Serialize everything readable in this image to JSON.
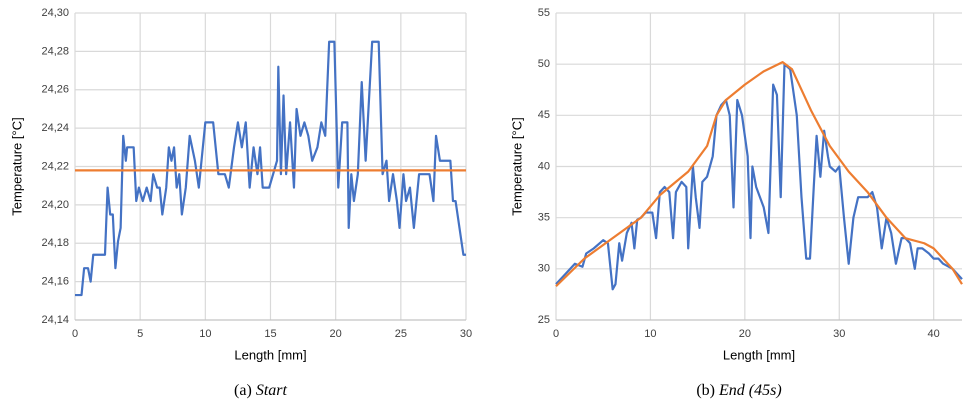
{
  "chart_data": [
    {
      "type": "line",
      "x_label": "Length [mm]",
      "y_label": "Temperature [°C]",
      "caption_label": "(a)",
      "caption_title": "Start",
      "xlim": [
        0,
        30
      ],
      "xticks": [
        0,
        5,
        10,
        15,
        20,
        25,
        30
      ],
      "ylim": [
        24.14,
        24.3
      ],
      "yticks": [
        {
          "value": 24.14,
          "label": "24,14"
        },
        {
          "value": 24.16,
          "label": "24,16"
        },
        {
          "value": 24.18,
          "label": "24,18"
        },
        {
          "value": 24.2,
          "label": "24,20"
        },
        {
          "value": 24.22,
          "label": "24,22"
        },
        {
          "value": 24.24,
          "label": "24,24"
        },
        {
          "value": 24.26,
          "label": "24,26"
        },
        {
          "value": 24.28,
          "label": "24,28"
        },
        {
          "value": 24.3,
          "label": "24,30"
        }
      ],
      "grid": true,
      "series": [
        {
          "color": "#4472c4",
          "x": [
            0,
            0.5,
            0.7,
            1.0,
            1.2,
            1.4,
            2.3,
            2.5,
            2.7,
            2.9,
            3.1,
            3.3,
            3.5,
            3.7,
            3.9,
            4.0,
            4.5,
            4.7,
            4.9,
            5.2,
            5.5,
            5.8,
            6.0,
            6.3,
            6.5,
            6.7,
            7.0,
            7.2,
            7.4,
            7.6,
            7.8,
            8.0,
            8.2,
            8.5,
            8.8,
            9.2,
            9.5,
            10.0,
            10.6,
            11.0,
            11.5,
            11.8,
            12.2,
            12.5,
            12.8,
            13.1,
            13.4,
            13.7,
            14.0,
            14.2,
            14.4,
            14.9,
            15.2,
            15.5,
            15.6,
            15.8,
            16.0,
            16.2,
            16.5,
            16.8,
            17.0,
            17.3,
            17.6,
            17.9,
            18.2,
            18.6,
            18.9,
            19.2,
            19.5,
            19.9,
            20.2,
            20.5,
            20.9,
            21.0,
            21.2,
            21.4,
            21.7,
            22.0,
            22.3,
            22.8,
            23.3,
            23.6,
            23.9,
            24.1,
            24.4,
            24.7,
            24.9,
            25.2,
            25.4,
            25.7,
            26.0,
            26.4,
            27.2,
            27.5,
            27.7,
            28.0,
            28.8,
            29.0,
            29.2,
            29.5,
            29.8,
            30.0
          ],
          "values": [
            24.153,
            24.153,
            24.167,
            24.167,
            24.16,
            24.174,
            24.174,
            24.209,
            24.195,
            24.195,
            24.167,
            24.181,
            24.188,
            24.236,
            24.223,
            24.23,
            24.23,
            24.202,
            24.209,
            24.202,
            24.209,
            24.202,
            24.216,
            24.209,
            24.209,
            24.195,
            24.209,
            24.23,
            24.223,
            24.23,
            24.209,
            24.216,
            24.195,
            24.209,
            24.236,
            24.223,
            24.209,
            24.243,
            24.243,
            24.216,
            24.216,
            24.209,
            24.23,
            24.243,
            24.23,
            24.243,
            24.209,
            24.23,
            24.216,
            24.23,
            24.209,
            24.209,
            24.216,
            24.223,
            24.272,
            24.216,
            24.257,
            24.216,
            24.243,
            24.209,
            24.25,
            24.236,
            24.243,
            24.236,
            24.223,
            24.23,
            24.243,
            24.236,
            24.285,
            24.285,
            24.209,
            24.243,
            24.243,
            24.188,
            24.216,
            24.202,
            24.216,
            24.264,
            24.223,
            24.285,
            24.285,
            24.216,
            24.223,
            24.202,
            24.216,
            24.202,
            24.188,
            24.216,
            24.202,
            24.209,
            24.188,
            24.216,
            24.216,
            24.202,
            24.236,
            24.223,
            24.223,
            24.202,
            24.202,
            24.188,
            24.174,
            24.174
          ]
        },
        {
          "color": "#ed7d31",
          "x": [
            0,
            30
          ],
          "values": [
            24.218,
            24.218
          ]
        }
      ]
    },
    {
      "type": "line",
      "x_label": "Length [mm]",
      "y_label": "Temperature [°C]",
      "caption_label": "(b)",
      "caption_title": "End (45s)",
      "xlim": [
        0,
        43
      ],
      "xticks": [
        0,
        10,
        20,
        30,
        40
      ],
      "ylim": [
        25,
        55
      ],
      "yticks": [
        25,
        30,
        35,
        40,
        45,
        50,
        55
      ],
      "grid": true,
      "series": [
        {
          "color": "#4472c4",
          "x": [
            0,
            1,
            2,
            2.8,
            3.2,
            4,
            5,
            5.5,
            6,
            6.3,
            6.7,
            7,
            7.5,
            8,
            8.3,
            8.6,
            9,
            9.5,
            10.2,
            10.6,
            11,
            11.5,
            12,
            12.4,
            12.7,
            13.3,
            13.8,
            14,
            14.5,
            14.8,
            15.2,
            15.5,
            16,
            16.6,
            17,
            17.5,
            18,
            18.4,
            18.8,
            19.2,
            19.7,
            20.3,
            20.6,
            20.8,
            21.2,
            22,
            22.5,
            23,
            23.4,
            23.8,
            24.2,
            24.8,
            25.5,
            26,
            26.5,
            26.9,
            27.3,
            27.6,
            28,
            28.4,
            28.8,
            29,
            29.6,
            30,
            30.5,
            31,
            31.5,
            32,
            33,
            33.5,
            34,
            34.5,
            35,
            35.5,
            36,
            36.6,
            37,
            37.5,
            38,
            38.3,
            38.8,
            39.5,
            40,
            40.5,
            41,
            42,
            43
          ],
          "values": [
            28.5,
            29.5,
            30.5,
            30.2,
            31.5,
            32,
            32.8,
            32.5,
            28,
            28.5,
            32.5,
            30.8,
            33.5,
            34.5,
            32,
            34.8,
            35,
            35.5,
            35.5,
            33,
            37.5,
            38,
            37.5,
            33,
            37.5,
            38.5,
            38,
            32,
            40,
            37,
            34,
            38.5,
            39,
            41,
            45,
            46,
            46.5,
            45,
            36,
            46.5,
            45,
            41,
            33,
            40,
            38,
            36,
            33.5,
            48,
            47,
            37,
            50,
            49.5,
            45,
            37,
            31,
            31,
            38,
            43,
            39,
            43.5,
            41,
            40,
            39.5,
            40,
            35,
            30.5,
            35,
            37,
            37,
            37.5,
            36,
            32,
            35,
            33.5,
            30.5,
            33,
            33,
            32.5,
            30,
            32,
            32,
            31.5,
            31,
            31,
            30.5,
            30,
            29
          ]
        },
        {
          "color": "#ed7d31",
          "x": [
            0,
            3,
            6,
            9,
            11,
            14,
            16,
            17,
            18,
            20,
            22,
            24,
            25,
            27,
            29,
            31,
            33,
            35,
            37,
            39,
            40,
            41,
            42,
            43
          ],
          "values": [
            28.3,
            31,
            33,
            35,
            37.2,
            39.5,
            42,
            45,
            46.5,
            48,
            49.3,
            50.2,
            49.5,
            45.5,
            42,
            39.5,
            37.5,
            35,
            33,
            32.5,
            32,
            31,
            30,
            28.5
          ]
        }
      ]
    }
  ]
}
